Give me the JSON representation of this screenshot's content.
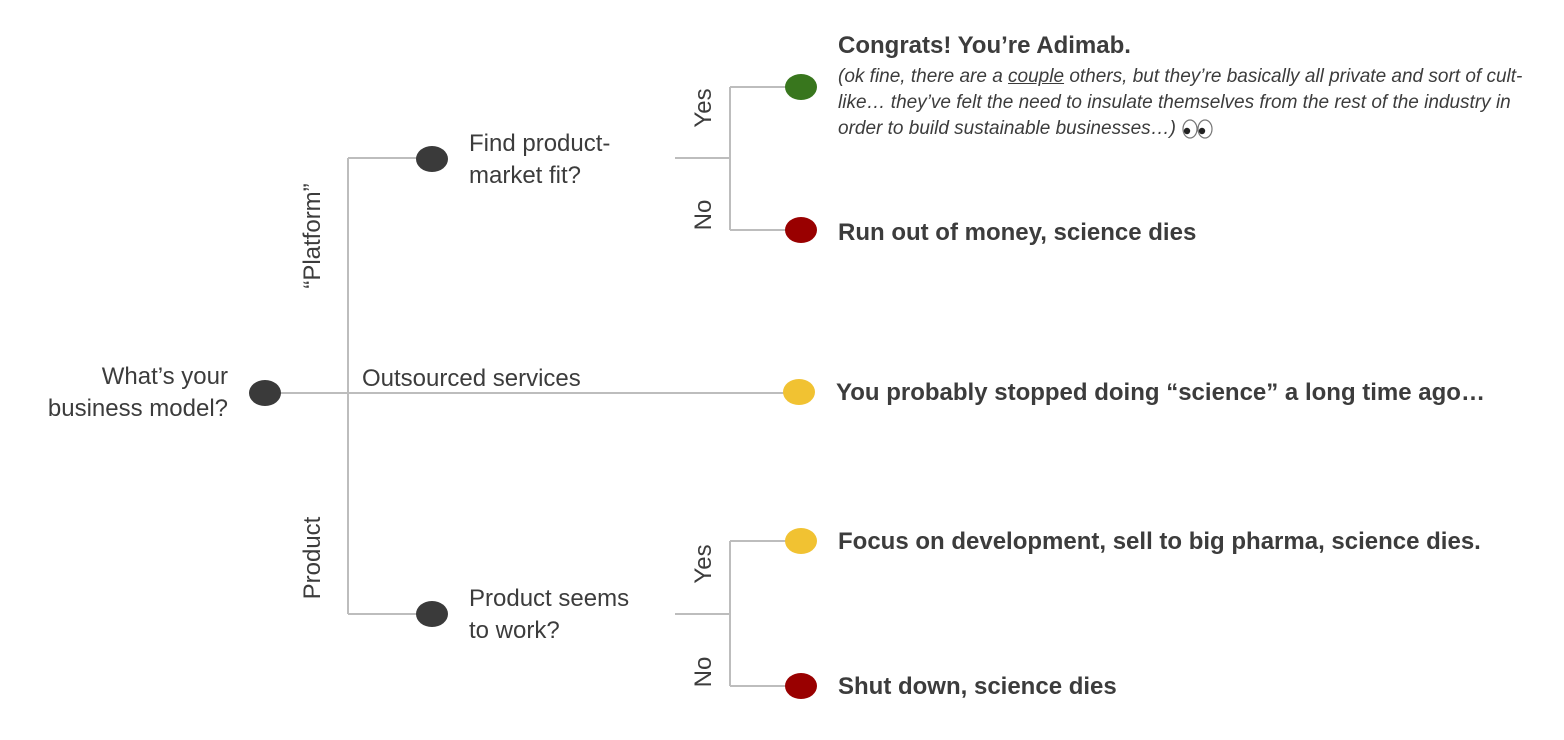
{
  "root": {
    "question_line1": "What’s your",
    "question_line2": "business model?"
  },
  "branches": {
    "platform_label": "“Platform”",
    "outsourced_label": "Outsourced services",
    "product_label": "Product"
  },
  "platform_question": {
    "line1": "Find product-",
    "line2": "market fit?"
  },
  "product_question": {
    "line1": "Product seems",
    "line2": "to work?"
  },
  "edge_labels": {
    "yes": "Yes",
    "no": "No"
  },
  "outcomes": {
    "platform_yes": {
      "title": "Congrats! You’re Adimab.",
      "note_before": "(ok fine, there are a ",
      "note_underlined": "couple",
      "note_after": " others, but they’re basically all private and sort of cult-like… they’ve felt the need to insulate themselves from the rest of the industry in order to build sustainable businesses…)",
      "emoji_icon": "eyes-icon"
    },
    "platform_no": "Run out of money, science dies",
    "outsourced": "You probably stopped doing “science” a long time ago…",
    "product_yes": "Focus on development, sell to big pharma, science dies.",
    "product_no": "Shut down, science dies"
  },
  "colors": {
    "node_dark": "#3a3a3a",
    "green": "#38761d",
    "red": "#990000",
    "yellow": "#f1c232",
    "line": "#bdbdbd"
  }
}
